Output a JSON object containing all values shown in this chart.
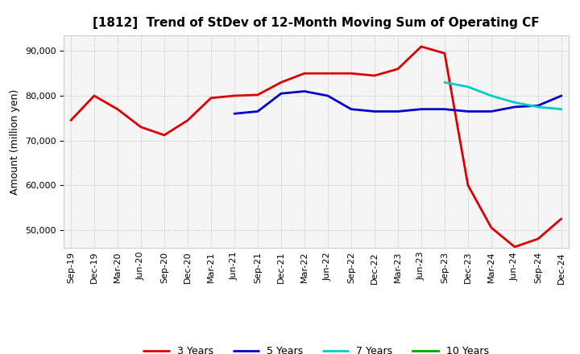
{
  "title": "[1812]  Trend of StDev of 12-Month Moving Sum of Operating CF",
  "ylabel": "Amount (million yen)",
  "x_labels": [
    "Sep-19",
    "Dec-19",
    "Mar-20",
    "Jun-20",
    "Sep-20",
    "Dec-20",
    "Mar-21",
    "Jun-21",
    "Sep-21",
    "Dec-21",
    "Mar-22",
    "Jun-22",
    "Sep-22",
    "Dec-22",
    "Mar-23",
    "Jun-23",
    "Sep-23",
    "Dec-23",
    "Mar-24",
    "Jun-24",
    "Sep-24",
    "Dec-24"
  ],
  "ylim": [
    46000,
    93500
  ],
  "yticks": [
    50000,
    60000,
    70000,
    80000,
    90000
  ],
  "series_order": [
    "3 Years",
    "5 Years",
    "7 Years",
    "10 Years"
  ],
  "series": {
    "3 Years": {
      "color": "#DD0000",
      "linewidth": 2.0,
      "data_x": [
        0,
        1,
        2,
        3,
        4,
        5,
        6,
        7,
        8,
        9,
        10,
        11,
        12,
        13,
        14,
        15,
        16,
        17,
        18,
        19,
        20,
        21
      ],
      "data_y": [
        74500,
        80000,
        77000,
        73000,
        71200,
        74500,
        79500,
        80000,
        80200,
        83000,
        85000,
        85000,
        85000,
        84500,
        86000,
        91000,
        89500,
        60000,
        50500,
        46200,
        48000,
        52500
      ]
    },
    "5 Years": {
      "color": "#0000CC",
      "linewidth": 2.0,
      "data_x": [
        7,
        8,
        9,
        10,
        11,
        12,
        13,
        14,
        15,
        16,
        17,
        18,
        19,
        20,
        21
      ],
      "data_y": [
        76000,
        76500,
        80500,
        81000,
        80000,
        77000,
        76500,
        76500,
        77000,
        77000,
        76500,
        76500,
        77500,
        77800,
        80000
      ]
    },
    "7 Years": {
      "color": "#00CCCC",
      "linewidth": 2.0,
      "data_x": [
        16,
        17,
        18,
        19,
        20,
        21
      ],
      "data_y": [
        83000,
        82000,
        80000,
        78500,
        77500,
        77000
      ]
    },
    "10 Years": {
      "color": "#00AA00",
      "linewidth": 2.0,
      "data_x": [],
      "data_y": []
    }
  },
  "grid_color": "#aaaaaa",
  "grid_linestyle": ":",
  "background_color": "#ffffff",
  "plot_bg_color": "#f5f5f5",
  "title_fontsize": 11,
  "axis_fontsize": 9,
  "tick_fontsize": 8
}
